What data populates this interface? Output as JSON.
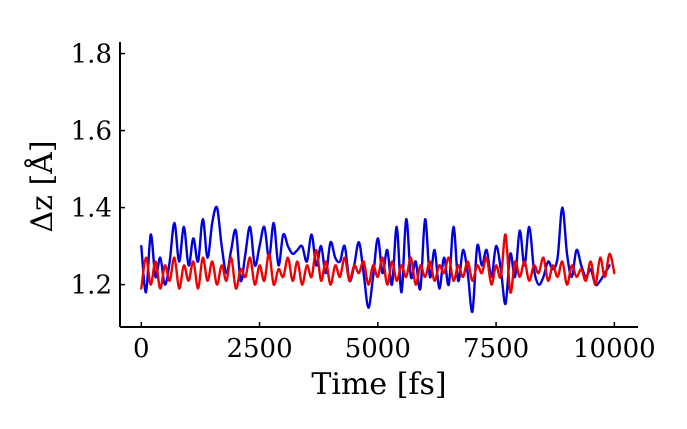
{
  "chart_data": {
    "type": "line",
    "title": "",
    "xlabel": "Time [fs]",
    "ylabel": "Δz [Å]",
    "xlim": [
      -450,
      10500
    ],
    "ylim": [
      1.09,
      1.83
    ],
    "x_ticks": [
      0,
      2500,
      5000,
      7500,
      10000
    ],
    "x_tick_labels": [
      "0",
      "2500",
      "5000",
      "7500",
      "10000"
    ],
    "y_ticks": [
      1.2,
      1.4,
      1.6,
      1.8
    ],
    "y_tick_labels": [
      "1.2",
      "1.4",
      "1.6",
      "1.8"
    ],
    "grid": false,
    "legend": false,
    "series": [
      {
        "color": "#0000dd",
        "x": [
          0,
          100,
          200,
          300,
          400,
          500,
          600,
          700,
          800,
          900,
          1000,
          1100,
          1200,
          1300,
          1400,
          1500,
          1600,
          1700,
          1800,
          1900,
          2000,
          2100,
          2200,
          2300,
          2400,
          2500,
          2600,
          2700,
          2800,
          2900,
          3000,
          3100,
          3200,
          3300,
          3400,
          3500,
          3600,
          3700,
          3800,
          3900,
          4000,
          4100,
          4200,
          4300,
          4400,
          4500,
          4600,
          4700,
          4800,
          4900,
          5000,
          5100,
          5200,
          5300,
          5400,
          5500,
          5600,
          5700,
          5800,
          5900,
          6000,
          6100,
          6200,
          6300,
          6400,
          6500,
          6600,
          6700,
          6800,
          6900,
          7000,
          7100,
          7200,
          7300,
          7400,
          7500,
          7600,
          7700,
          7800,
          7900,
          8000,
          8100,
          8200,
          8300,
          8400,
          8500,
          8600,
          8700,
          8800,
          8900,
          9000,
          9100,
          9200,
          9300,
          9400,
          9500,
          9600,
          9700,
          9800,
          9900
        ],
        "y": [
          1.3,
          1.18,
          1.33,
          1.22,
          1.27,
          1.2,
          1.26,
          1.36,
          1.26,
          1.35,
          1.25,
          1.32,
          1.26,
          1.37,
          1.27,
          1.36,
          1.4,
          1.3,
          1.23,
          1.29,
          1.34,
          1.21,
          1.28,
          1.35,
          1.25,
          1.3,
          1.35,
          1.27,
          1.36,
          1.25,
          1.33,
          1.3,
          1.28,
          1.29,
          1.3,
          1.26,
          1.33,
          1.25,
          1.3,
          1.23,
          1.31,
          1.27,
          1.26,
          1.3,
          1.21,
          1.25,
          1.31,
          1.23,
          1.14,
          1.22,
          1.32,
          1.23,
          1.29,
          1.2,
          1.35,
          1.18,
          1.37,
          1.22,
          1.26,
          1.19,
          1.37,
          1.22,
          1.29,
          1.19,
          1.27,
          1.2,
          1.35,
          1.21,
          1.29,
          1.23,
          1.13,
          1.3,
          1.25,
          1.29,
          1.22,
          1.3,
          1.24,
          1.15,
          1.28,
          1.22,
          1.34,
          1.25,
          1.35,
          1.24,
          1.2,
          1.22,
          1.26,
          1.24,
          1.27,
          1.4,
          1.28,
          1.22,
          1.29,
          1.25,
          1.22,
          1.24,
          1.2,
          1.21,
          1.23,
          1.25
        ]
      },
      {
        "color": "#ee0000",
        "x": [
          0,
          100,
          200,
          300,
          400,
          500,
          600,
          700,
          800,
          900,
          1000,
          1100,
          1200,
          1300,
          1400,
          1500,
          1600,
          1700,
          1800,
          1900,
          2000,
          2100,
          2200,
          2300,
          2400,
          2500,
          2600,
          2700,
          2800,
          2900,
          3000,
          3100,
          3200,
          3300,
          3400,
          3500,
          3600,
          3700,
          3800,
          3900,
          4000,
          4100,
          4200,
          4300,
          4400,
          4500,
          4600,
          4700,
          4800,
          4900,
          5000,
          5100,
          5200,
          5300,
          5400,
          5500,
          5600,
          5700,
          5800,
          5900,
          6000,
          6100,
          6200,
          6300,
          6400,
          6500,
          6600,
          6700,
          6800,
          6900,
          7000,
          7100,
          7200,
          7300,
          7400,
          7500,
          7600,
          7700,
          7800,
          7900,
          8000,
          8100,
          8200,
          8300,
          8400,
          8500,
          8600,
          8700,
          8800,
          8900,
          9000,
          9100,
          9200,
          9300,
          9400,
          9500,
          9600,
          9700,
          9800,
          9900,
          10000
        ],
        "y": [
          1.19,
          1.27,
          1.2,
          1.26,
          1.19,
          1.25,
          1.21,
          1.27,
          1.19,
          1.25,
          1.21,
          1.26,
          1.19,
          1.27,
          1.21,
          1.26,
          1.2,
          1.25,
          1.21,
          1.27,
          1.19,
          1.24,
          1.22,
          1.27,
          1.2,
          1.25,
          1.21,
          1.28,
          1.2,
          1.24,
          1.22,
          1.27,
          1.21,
          1.26,
          1.2,
          1.25,
          1.22,
          1.29,
          1.21,
          1.26,
          1.2,
          1.25,
          1.22,
          1.27,
          1.21,
          1.25,
          1.23,
          1.26,
          1.2,
          1.25,
          1.22,
          1.27,
          1.2,
          1.26,
          1.21,
          1.25,
          1.22,
          1.27,
          1.2,
          1.25,
          1.22,
          1.26,
          1.21,
          1.25,
          1.23,
          1.27,
          1.21,
          1.25,
          1.22,
          1.26,
          1.21,
          1.25,
          1.23,
          1.27,
          1.2,
          1.25,
          1.22,
          1.33,
          1.18,
          1.26,
          1.22,
          1.26,
          1.21,
          1.25,
          1.23,
          1.27,
          1.21,
          1.25,
          1.22,
          1.26,
          1.2,
          1.25,
          1.22,
          1.24,
          1.21,
          1.26,
          1.2,
          1.27,
          1.22,
          1.28,
          1.23
        ]
      }
    ]
  }
}
